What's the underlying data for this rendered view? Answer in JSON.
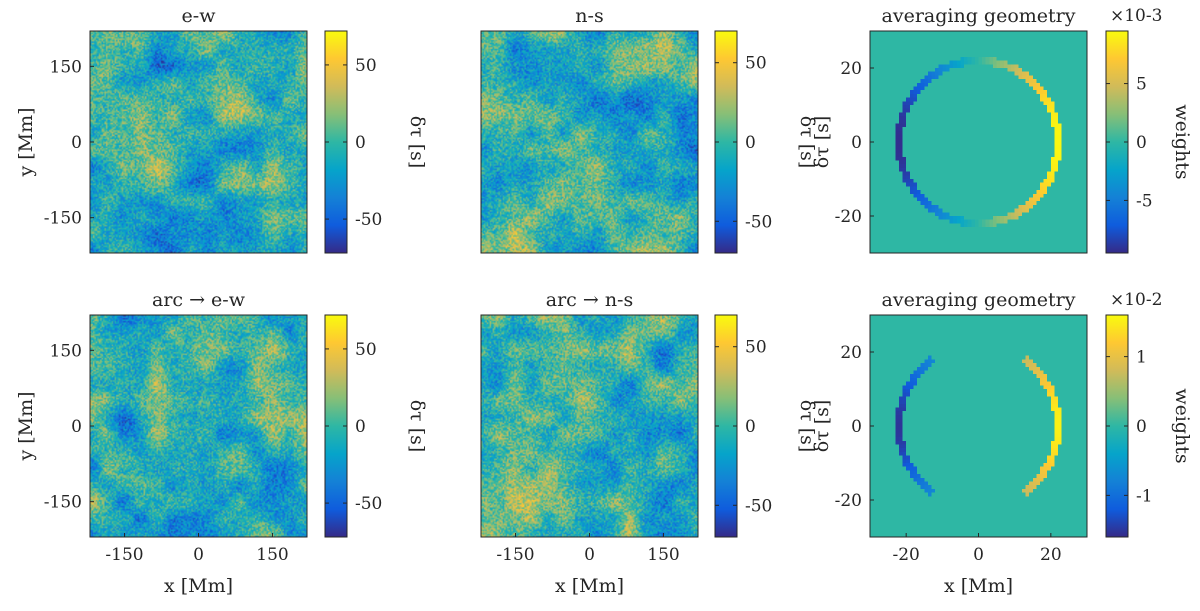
{
  "chart_data": [
    {
      "type": "heatmap",
      "title": "e-w",
      "xlabel": "",
      "ylabel": "y [Mm]",
      "xlim": [
        -220,
        220
      ],
      "ylim": [
        -220,
        220
      ],
      "xticks": [],
      "yticks": [
        -150,
        0,
        150
      ],
      "colorbar": {
        "label": "δτ [s]",
        "range": [
          -72,
          72
        ],
        "ticks": [
          -50,
          0,
          50
        ],
        "tick_labels": [
          "-50",
          "0",
          "50"
        ],
        "exponent": ""
      },
      "field": "noise"
    },
    {
      "type": "heatmap",
      "title": "n-s",
      "xlabel": "",
      "ylabel": "",
      "xlim": [
        -220,
        220
      ],
      "ylim": [
        -220,
        220
      ],
      "xticks": [],
      "yticks": [],
      "colorbar": {
        "label": "δτ [s]",
        "range": [
          -70,
          70
        ],
        "ticks": [
          -50,
          0,
          50
        ],
        "tick_labels": [
          "-50",
          "0",
          "50"
        ],
        "exponent": ""
      },
      "field": "noise"
    },
    {
      "type": "heatmap",
      "title": "averaging geometry",
      "xlabel": "",
      "ylabel": "δτ [s]",
      "xlim": [
        -30,
        30
      ],
      "ylim": [
        -30,
        30
      ],
      "xticks": [],
      "yticks": [
        -20,
        0,
        20
      ],
      "colorbar": {
        "label": "weights",
        "range": [
          -9.5,
          9.5
        ],
        "ticks": [
          -5,
          0,
          5
        ],
        "tick_labels": [
          "-5",
          "0",
          "5"
        ],
        "exponent": "×10-3"
      },
      "field": "full-ring",
      "ring_radius_Mm": 22
    },
    {
      "type": "heatmap",
      "title": "arc → e-w",
      "xlabel": "x [Mm]",
      "ylabel": "y [Mm]",
      "xlim": [
        -220,
        220
      ],
      "ylim": [
        -220,
        220
      ],
      "xticks": [
        -150,
        0,
        150
      ],
      "yticks": [
        -150,
        0,
        150
      ],
      "colorbar": {
        "label": "δτ [s]",
        "range": [
          -72,
          72
        ],
        "ticks": [
          -50,
          0,
          50
        ],
        "tick_labels": [
          "-50",
          "0",
          "50"
        ],
        "exponent": ""
      },
      "field": "noise"
    },
    {
      "type": "heatmap",
      "title": "arc → n-s",
      "xlabel": "x [Mm]",
      "ylabel": "",
      "xlim": [
        -220,
        220
      ],
      "ylim": [
        -220,
        220
      ],
      "xticks": [
        -150,
        0,
        150
      ],
      "yticks": [],
      "colorbar": {
        "label": "δτ [s]",
        "range": [
          -70,
          70
        ],
        "ticks": [
          -50,
          0,
          50
        ],
        "tick_labels": [
          "-50",
          "0",
          "50"
        ],
        "exponent": ""
      },
      "field": "noise"
    },
    {
      "type": "heatmap",
      "title": "averaging geometry",
      "xlabel": "x [Mm]",
      "ylabel": "δτ [s]",
      "xlim": [
        -30,
        30
      ],
      "ylim": [
        -30,
        30
      ],
      "xticks": [
        -20,
        0,
        20
      ],
      "yticks": [
        -20,
        0,
        20
      ],
      "colorbar": {
        "label": "weights",
        "range": [
          -1.6,
          1.6
        ],
        "ticks": [
          -1,
          0,
          1
        ],
        "tick_labels": [
          "-1",
          "0",
          "1"
        ],
        "exponent": "×10-2"
      },
      "field": "arcs",
      "ring_radius_Mm": 22,
      "arc_half_angle_deg": 55
    }
  ]
}
